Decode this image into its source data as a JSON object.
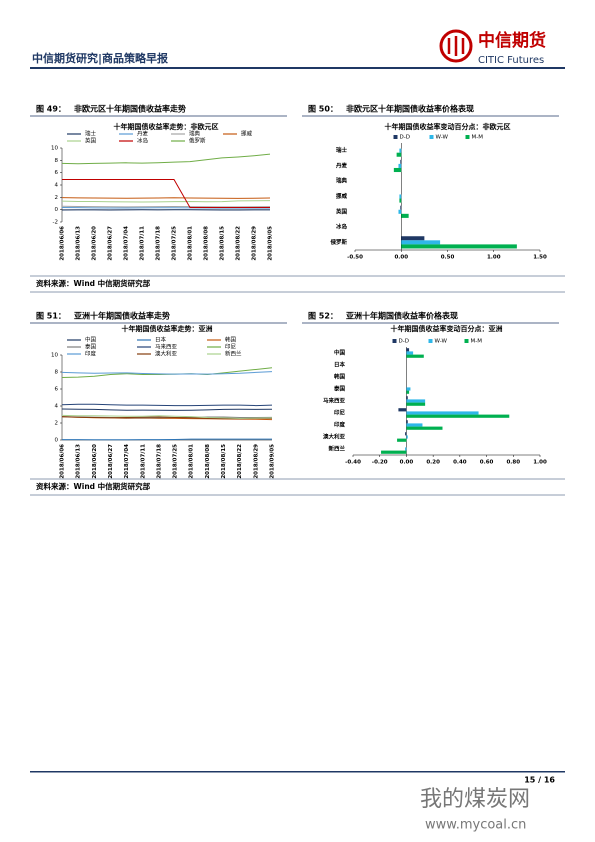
{
  "header": {
    "title": "中信期货研究|商品策略早报",
    "logo_cn": "中信期货",
    "logo_en": "CITIC Futures"
  },
  "chart_data": [
    {
      "type": "line",
      "figure": "图 49：",
      "caption": "非欧元区十年期国债收益率走势",
      "title": "十年期国债收益率走势：非欧元区",
      "categories": [
        "2018/06/06",
        "2018/06/13",
        "2018/06/20",
        "2018/06/27",
        "2018/07/04",
        "2018/07/11",
        "2018/07/18",
        "2018/07/25",
        "2018/08/01",
        "2018/08/08",
        "2018/08/15",
        "2018/08/22",
        "2018/08/29",
        "2018/09/05"
      ],
      "ylim": [
        -2,
        10
      ],
      "yticks": [
        -2,
        0,
        2,
        4,
        6,
        8,
        10
      ],
      "series": [
        {
          "name": "瑞士",
          "color": "#1f3864",
          "values": [
            -0.05,
            -0.04,
            -0.03,
            -0.05,
            -0.04,
            -0.02,
            -0.03,
            -0.01,
            -0.02,
            -0.04,
            -0.05,
            -0.06,
            -0.03,
            -0.04
          ]
        },
        {
          "name": "丹麦",
          "color": "#5b9bd5",
          "values": [
            0.35,
            0.33,
            0.3,
            0.28,
            0.27,
            0.3,
            0.31,
            0.32,
            0.3,
            0.28,
            0.26,
            0.25,
            0.24,
            0.26
          ]
        },
        {
          "name": "瑞典",
          "color": "#a5a5a5",
          "values": [
            0.55,
            0.52,
            0.49,
            0.47,
            0.45,
            0.48,
            0.5,
            0.52,
            0.49,
            0.48,
            0.46,
            0.45,
            0.47,
            0.5
          ]
        },
        {
          "name": "挪威",
          "color": "#c55a11",
          "values": [
            1.95,
            1.92,
            1.9,
            1.88,
            1.85,
            1.87,
            1.9,
            1.93,
            1.9,
            1.88,
            1.85,
            1.84,
            1.86,
            1.9
          ]
        },
        {
          "name": "英国",
          "color": "#a9d18e",
          "values": [
            1.38,
            1.33,
            1.32,
            1.28,
            1.27,
            1.24,
            1.26,
            1.3,
            1.33,
            1.28,
            1.3,
            1.43,
            1.45,
            1.47
          ]
        },
        {
          "name": "冰岛",
          "color": "#c00000",
          "values": [
            4.9,
            4.9,
            4.9,
            4.9,
            4.9,
            4.9,
            4.9,
            4.9,
            0.35,
            0.35,
            0.35,
            0.35,
            0.35,
            0.35
          ]
        },
        {
          "name": "俄罗斯",
          "color": "#70ad47",
          "values": [
            7.5,
            7.45,
            7.5,
            7.55,
            7.6,
            7.55,
            7.6,
            7.7,
            7.8,
            8.1,
            8.4,
            8.55,
            8.75,
            9.0
          ]
        }
      ]
    },
    {
      "type": "hbar",
      "figure": "图 50：",
      "caption": "非欧元区十年期国债收益率价格表现",
      "title": "十年期国债收益率变动百分点：非欧元区",
      "categories": [
        "瑞士",
        "丹麦",
        "瑞典",
        "挪威",
        "英国",
        "冰岛",
        "俄罗斯"
      ],
      "xlim": [
        -0.5,
        1.5
      ],
      "xticks": [
        {
          "value": -0.5,
          "label": "-0.50"
        },
        {
          "value": 0,
          "label": "0.00"
        },
        {
          "value": 0.5,
          "label": "0.50"
        },
        {
          "value": 1,
          "label": "1.00"
        },
        {
          "value": 1.5,
          "label": "1.50"
        }
      ],
      "series": [
        {
          "name": "D-D",
          "color": "#1f3864",
          "values": [
            0,
            -0.01,
            0,
            0,
            -0.01,
            0,
            0.25
          ]
        },
        {
          "name": "W-W",
          "color": "#2eb7e8",
          "values": [
            -0.02,
            -0.03,
            0,
            -0.02,
            -0.03,
            0,
            0.42
          ]
        },
        {
          "name": "M-M",
          "color": "#00b050",
          "values": [
            -0.05,
            -0.08,
            0,
            -0.02,
            0.08,
            0,
            1.25
          ]
        }
      ]
    },
    {
      "type": "line",
      "figure": "图 51：",
      "caption": "亚洲十年期国债收益率走势",
      "title": "十年期国债收益率走势：亚洲",
      "categories": [
        "2018/06/06",
        "2018/06/13",
        "2018/06/20",
        "2018/06/27",
        "2018/07/04",
        "2018/07/11",
        "2018/07/18",
        "2018/07/25",
        "2018/08/01",
        "2018/08/08",
        "2018/08/15",
        "2018/08/22",
        "2018/08/29",
        "2018/09/05"
      ],
      "ylim": [
        0,
        10
      ],
      "yticks": [
        0,
        2,
        4,
        6,
        8,
        10
      ],
      "series": [
        {
          "name": "中国",
          "color": "#1f3864",
          "values": [
            3.65,
            3.62,
            3.6,
            3.55,
            3.5,
            3.52,
            3.5,
            3.48,
            3.5,
            3.55,
            3.6,
            3.62,
            3.6,
            3.62
          ]
        },
        {
          "name": "日本",
          "color": "#2e75b6",
          "values": [
            0.04,
            0.04,
            0.03,
            0.03,
            0.03,
            0.04,
            0.05,
            0.06,
            0.1,
            0.11,
            0.1,
            0.1,
            0.11,
            0.11
          ]
        },
        {
          "name": "韩国",
          "color": "#c55a11",
          "values": [
            2.72,
            2.68,
            2.62,
            2.6,
            2.55,
            2.58,
            2.55,
            2.55,
            2.52,
            2.5,
            2.47,
            2.45,
            2.44,
            2.4
          ]
        },
        {
          "name": "泰国",
          "color": "#7f7f7f",
          "values": [
            2.75,
            2.7,
            2.68,
            2.65,
            2.6,
            2.6,
            2.62,
            2.65,
            2.65,
            2.7,
            2.7,
            2.65,
            2.65,
            2.66
          ]
        },
        {
          "name": "马来西亚",
          "color": "#264478",
          "values": [
            4.15,
            4.2,
            4.2,
            4.15,
            4.1,
            4.1,
            4.08,
            4.05,
            4.05,
            4.07,
            4.1,
            4.1,
            4.05,
            4.1
          ]
        },
        {
          "name": "印尼",
          "color": "#70ad47",
          "values": [
            7.35,
            7.4,
            7.5,
            7.7,
            7.8,
            7.7,
            7.7,
            7.75,
            7.8,
            7.7,
            7.9,
            8.1,
            8.3,
            8.5
          ]
        },
        {
          "name": "印度",
          "color": "#5b9bd5",
          "values": [
            7.95,
            7.9,
            7.85,
            7.88,
            7.9,
            7.82,
            7.78,
            7.75,
            7.78,
            7.75,
            7.8,
            7.85,
            7.95,
            8.05
          ]
        },
        {
          "name": "澳大利亚",
          "color": "#843c0c",
          "values": [
            2.75,
            2.68,
            2.65,
            2.62,
            2.65,
            2.68,
            2.7,
            2.65,
            2.6,
            2.55,
            2.52,
            2.5,
            2.55,
            2.55
          ]
        },
        {
          "name": "新西兰",
          "color": "#a9d18e",
          "values": [
            2.9,
            2.85,
            2.85,
            2.82,
            2.8,
            2.8,
            2.85,
            2.8,
            2.75,
            2.65,
            2.6,
            2.55,
            2.58,
            2.6
          ]
        }
      ]
    },
    {
      "type": "hbar",
      "figure": "图 52：",
      "caption": "亚洲十年期国债收益率价格表现",
      "title": "十年期国债收益率变动百分点：亚洲",
      "categories": [
        "中国",
        "日本",
        "韩国",
        "泰国",
        "马来西亚",
        "印尼",
        "印度",
        "澳大利亚",
        "新西兰"
      ],
      "xlim": [
        -0.4,
        1.0
      ],
      "xticks": [
        {
          "value": -0.4,
          "label": "-0.40"
        },
        {
          "value": -0.2,
          "label": "-0.20"
        },
        {
          "value": 0,
          "label": "0.00"
        },
        {
          "value": 0.2,
          "label": "0.20"
        },
        {
          "value": 0.4,
          "label": "0.40"
        },
        {
          "value": 0.6,
          "label": "0.60"
        },
        {
          "value": 0.8,
          "label": "0.80"
        },
        {
          "value": 1.0,
          "label": "1.00"
        }
      ],
      "series": [
        {
          "name": "D-D",
          "color": "#1f3864",
          "values": [
            0.02,
            0,
            0,
            0,
            0.01,
            -0.06,
            0.01,
            -0.01,
            0
          ]
        },
        {
          "name": "W-W",
          "color": "#2eb7e8",
          "values": [
            0.05,
            0,
            0,
            0.03,
            0.14,
            0.54,
            0.12,
            0.01,
            -0.01
          ]
        },
        {
          "name": "M-M",
          "color": "#00b050",
          "values": [
            0.13,
            0,
            0,
            0.02,
            0.14,
            0.77,
            0.27,
            -0.07,
            -0.19
          ]
        }
      ]
    }
  ],
  "sources": [
    "资料来源：Wind  中信期货研究部",
    "资料来源：Wind  中信期货研究部"
  ],
  "footer": {
    "page": "15 / 16",
    "watermark_cn": "我的煤炭网",
    "watermark_url": "www.mycoal.cn"
  }
}
